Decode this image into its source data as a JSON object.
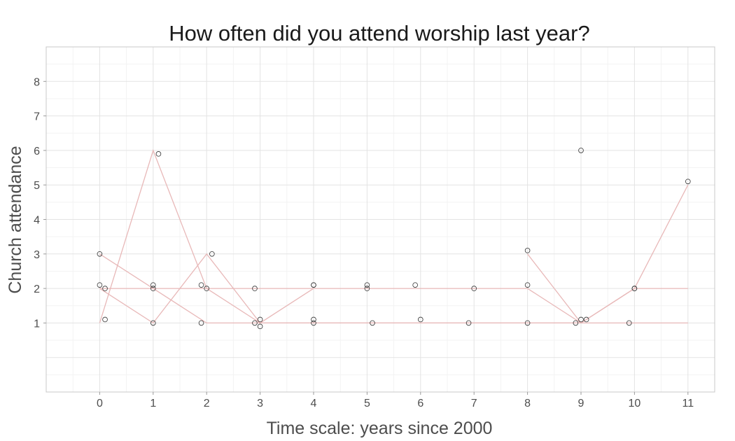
{
  "chart_data": {
    "type": "line",
    "title": "How often did you attend worship last year?",
    "xlabel": "Time scale: years since 2000",
    "ylabel": "Church attendance",
    "xlim": [
      -1,
      11.5
    ],
    "ylim": [
      -1,
      9
    ],
    "x_ticks": [
      "0",
      "1",
      "2",
      "3",
      "4",
      "5",
      "6",
      "7",
      "8",
      "9",
      "10",
      "11"
    ],
    "y_ticks": [
      "1",
      "2",
      "3",
      "4",
      "5",
      "6",
      "7",
      "8"
    ],
    "grid": true,
    "line_color": "#e8b8b8",
    "point_color": "#333333",
    "series": [
      {
        "x": [
          0,
          1,
          2,
          3,
          4,
          5,
          6,
          7,
          8,
          9,
          10,
          11
        ],
        "values": [
          1,
          6,
          2,
          1,
          1,
          1,
          1,
          1,
          1,
          1,
          1,
          1
        ]
      },
      {
        "x": [
          0,
          1,
          2,
          3,
          4,
          5,
          6,
          7,
          8,
          9,
          10,
          11
        ],
        "values": [
          2,
          2,
          2,
          2,
          2,
          2,
          2,
          2,
          2,
          1,
          2,
          2
        ]
      },
      {
        "x": [
          0,
          1,
          2,
          3,
          4,
          5,
          6,
          7,
          8,
          9,
          10,
          11
        ],
        "values": [
          3,
          2,
          1,
          1,
          1,
          1,
          1,
          1,
          1,
          1,
          2,
          5
        ]
      },
      {
        "x": [
          0,
          1,
          2,
          3,
          4
        ],
        "values": [
          2,
          1,
          3,
          1,
          2
        ]
      },
      {
        "x": [
          8,
          9
        ],
        "values": [
          3,
          1
        ]
      }
    ],
    "points": [
      {
        "x": 0,
        "y": 2.1
      },
      {
        "x": 0,
        "y": 3
      },
      {
        "x": 0.1,
        "y": 2
      },
      {
        "x": 0.1,
        "y": 1.1
      },
      {
        "x": 1,
        "y": 1
      },
      {
        "x": 1,
        "y": 2
      },
      {
        "x": 1,
        "y": 2.1
      },
      {
        "x": 1.1,
        "y": 5.9
      },
      {
        "x": 1.9,
        "y": 1
      },
      {
        "x": 1.9,
        "y": 2.1
      },
      {
        "x": 2,
        "y": 2
      },
      {
        "x": 2.1,
        "y": 3
      },
      {
        "x": 2.9,
        "y": 1
      },
      {
        "x": 2.9,
        "y": 2
      },
      {
        "x": 3,
        "y": 1.1
      },
      {
        "x": 3,
        "y": 0.9
      },
      {
        "x": 4,
        "y": 1.1
      },
      {
        "x": 4,
        "y": 2.1
      },
      {
        "x": 4,
        "y": 2.1
      },
      {
        "x": 4,
        "y": 1
      },
      {
        "x": 5,
        "y": 2
      },
      {
        "x": 5,
        "y": 2.1
      },
      {
        "x": 5.1,
        "y": 1
      },
      {
        "x": 5.9,
        "y": 2.1
      },
      {
        "x": 6,
        "y": 1.1
      },
      {
        "x": 6.9,
        "y": 1
      },
      {
        "x": 7,
        "y": 2
      },
      {
        "x": 8,
        "y": 3.1
      },
      {
        "x": 8,
        "y": 2.1
      },
      {
        "x": 8,
        "y": 1
      },
      {
        "x": 8.9,
        "y": 1
      },
      {
        "x": 9,
        "y": 1.1
      },
      {
        "x": 9,
        "y": 6
      },
      {
        "x": 9.1,
        "y": 1.1
      },
      {
        "x": 10,
        "y": 2
      },
      {
        "x": 10,
        "y": 2
      },
      {
        "x": 9.9,
        "y": 1
      },
      {
        "x": 11,
        "y": 5.1
      }
    ]
  }
}
